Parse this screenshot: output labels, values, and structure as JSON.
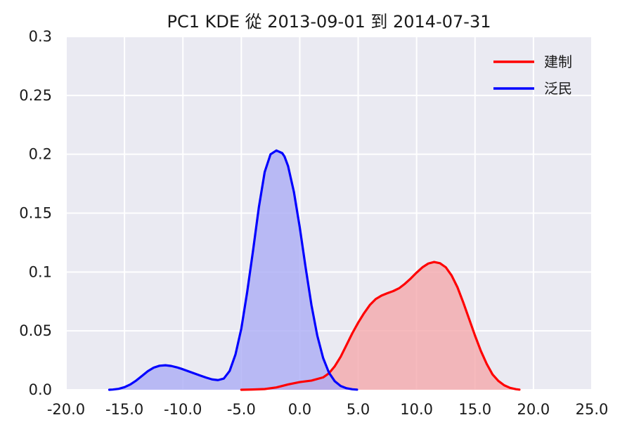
{
  "chart_data": {
    "type": "area",
    "title": "PC1 KDE 從 2013-09-01 到 2014-07-31",
    "xlabel": "",
    "ylabel": "",
    "xlim": [
      -20,
      25
    ],
    "ylim": [
      0,
      0.3
    ],
    "x_ticks": [
      -20,
      -15,
      -10,
      -5,
      0,
      5,
      10,
      15,
      20,
      25
    ],
    "x_tick_labels": [
      "-20.0",
      "-15.0",
      "-10.0",
      "-5.0",
      "0.0",
      "5.0",
      "10.0",
      "15.0",
      "20.0",
      "25.0"
    ],
    "y_ticks": [
      0,
      0.05,
      0.1,
      0.15,
      0.2,
      0.25,
      0.3
    ],
    "y_tick_labels": [
      "0.0",
      "0.05",
      "0.1",
      "0.15",
      "0.2",
      "0.25",
      "0.3"
    ],
    "grid": true,
    "legend_position": "top-right",
    "background_color": "#eaeaf2",
    "series": [
      {
        "name": "建制",
        "color": "#ff0000",
        "fill_color": "#f4a6ab",
        "x": [
          -5.0,
          -4.0,
          -3.0,
          -2.0,
          -1.0,
          0.0,
          1.0,
          2.0,
          2.5,
          3.0,
          3.5,
          4.0,
          4.5,
          5.0,
          5.5,
          6.0,
          6.5,
          7.0,
          7.5,
          8.0,
          8.5,
          9.0,
          9.5,
          10.0,
          10.5,
          11.0,
          11.5,
          12.0,
          12.5,
          13.0,
          13.5,
          14.0,
          14.5,
          15.0,
          15.5,
          16.0,
          16.5,
          17.0,
          17.5,
          18.0,
          18.5,
          18.8
        ],
        "y": [
          0.0,
          0.0002,
          0.0006,
          0.002,
          0.0045,
          0.0065,
          0.0078,
          0.0105,
          0.014,
          0.02,
          0.028,
          0.038,
          0.048,
          0.057,
          0.065,
          0.072,
          0.077,
          0.08,
          0.082,
          0.0838,
          0.0862,
          0.09,
          0.0945,
          0.0995,
          0.104,
          0.1072,
          0.1085,
          0.1075,
          0.104,
          0.097,
          0.087,
          0.074,
          0.06,
          0.046,
          0.033,
          0.022,
          0.013,
          0.0075,
          0.0038,
          0.0016,
          0.0005,
          0.0001
        ]
      },
      {
        "name": "泛民",
        "color": "#0000ff",
        "fill_color": "#a9abf5",
        "x": [
          -16.3,
          -16.0,
          -15.5,
          -15.0,
          -14.5,
          -14.0,
          -13.5,
          -13.0,
          -12.5,
          -12.0,
          -11.5,
          -11.0,
          -10.5,
          -10.0,
          -9.5,
          -9.0,
          -8.5,
          -8.0,
          -7.5,
          -7.0,
          -6.5,
          -6.0,
          -5.5,
          -5.0,
          -4.5,
          -4.0,
          -3.5,
          -3.0,
          -2.5,
          -2.0,
          -1.5,
          -1.3,
          -1.0,
          -0.5,
          0.0,
          0.5,
          1.0,
          1.5,
          2.0,
          2.5,
          3.0,
          3.5,
          4.0,
          4.5,
          4.9
        ],
        "y": [
          0.0,
          0.0002,
          0.0008,
          0.0022,
          0.0045,
          0.0078,
          0.0118,
          0.0158,
          0.0188,
          0.0204,
          0.0208,
          0.0202,
          0.019,
          0.0174,
          0.0156,
          0.0138,
          0.012,
          0.0103,
          0.0088,
          0.0082,
          0.0095,
          0.016,
          0.03,
          0.052,
          0.083,
          0.118,
          0.155,
          0.185,
          0.2,
          0.2032,
          0.201,
          0.198,
          0.19,
          0.168,
          0.138,
          0.104,
          0.072,
          0.046,
          0.027,
          0.0145,
          0.0072,
          0.0032,
          0.0013,
          0.0004,
          0.0001
        ]
      }
    ]
  }
}
